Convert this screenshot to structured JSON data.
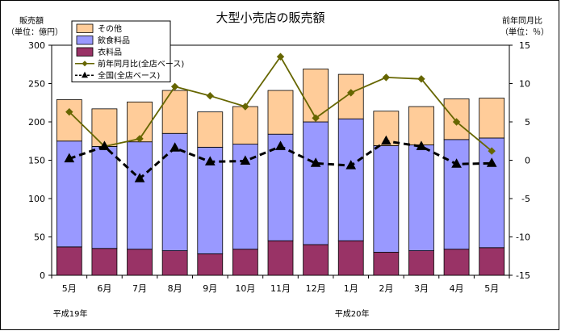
{
  "chart_data": {
    "type": "bar",
    "stacked": true,
    "title": "大型小売店の販売額",
    "ylabel_left": [
      "販売額",
      "（単位：億円）"
    ],
    "ylabel_right": [
      "前年同月比",
      "（単位：％）"
    ],
    "categories": [
      "5月",
      "6月",
      "7月",
      "8月",
      "9月",
      "10月",
      "11月",
      "12月",
      "1月",
      "2月",
      "3月",
      "4月",
      "5月"
    ],
    "era_labels": [
      {
        "text": "平成19年",
        "category_index": 0
      },
      {
        "text": "平成20年",
        "category_index": 8
      }
    ],
    "ylim_left": [
      0,
      300
    ],
    "yticks_left": [
      0,
      50,
      100,
      150,
      200,
      250,
      300
    ],
    "ylim_right": [
      -15,
      15
    ],
    "yticks_right": [
      -15,
      -10,
      -5,
      0,
      5,
      10,
      15
    ],
    "bar_series": [
      {
        "name": "衣料品",
        "color": "#993366",
        "values": [
          37,
          35,
          34,
          32,
          28,
          34,
          45,
          40,
          45,
          30,
          32,
          34,
          36
        ]
      },
      {
        "name": "飲食料品",
        "color": "#9999ff",
        "values": [
          138,
          133,
          140,
          153,
          139,
          137,
          139,
          160,
          159,
          139,
          138,
          143,
          143
        ]
      },
      {
        "name": "その他",
        "color": "#ffcc99",
        "values": [
          54,
          49,
          52,
          56,
          46,
          49,
          57,
          69,
          58,
          45,
          50,
          53,
          52
        ]
      }
    ],
    "line_series": [
      {
        "name": "前年同月比(全店ベース)",
        "color": "#666600",
        "style": "solid",
        "marker": "diamond",
        "values": [
          6.3,
          1.8,
          2.8,
          9.6,
          8.4,
          7.0,
          13.5,
          5.5,
          8.8,
          10.8,
          10.6,
          5.0,
          1.2
        ]
      },
      {
        "name": "全国(全店ベース)",
        "color": "#000000",
        "style": "dashed",
        "marker": "triangle",
        "values": [
          0.2,
          1.8,
          -2.4,
          1.6,
          -0.2,
          -0.1,
          1.8,
          -0.4,
          -0.7,
          2.5,
          1.8,
          -0.5,
          -0.4
        ]
      }
    ],
    "legend_order": [
      "その他",
      "飲食料品",
      "衣料品",
      "前年同月比(全店ベース)",
      "全国(全店ベース)"
    ],
    "legend_position": "top-left",
    "grid": false
  }
}
